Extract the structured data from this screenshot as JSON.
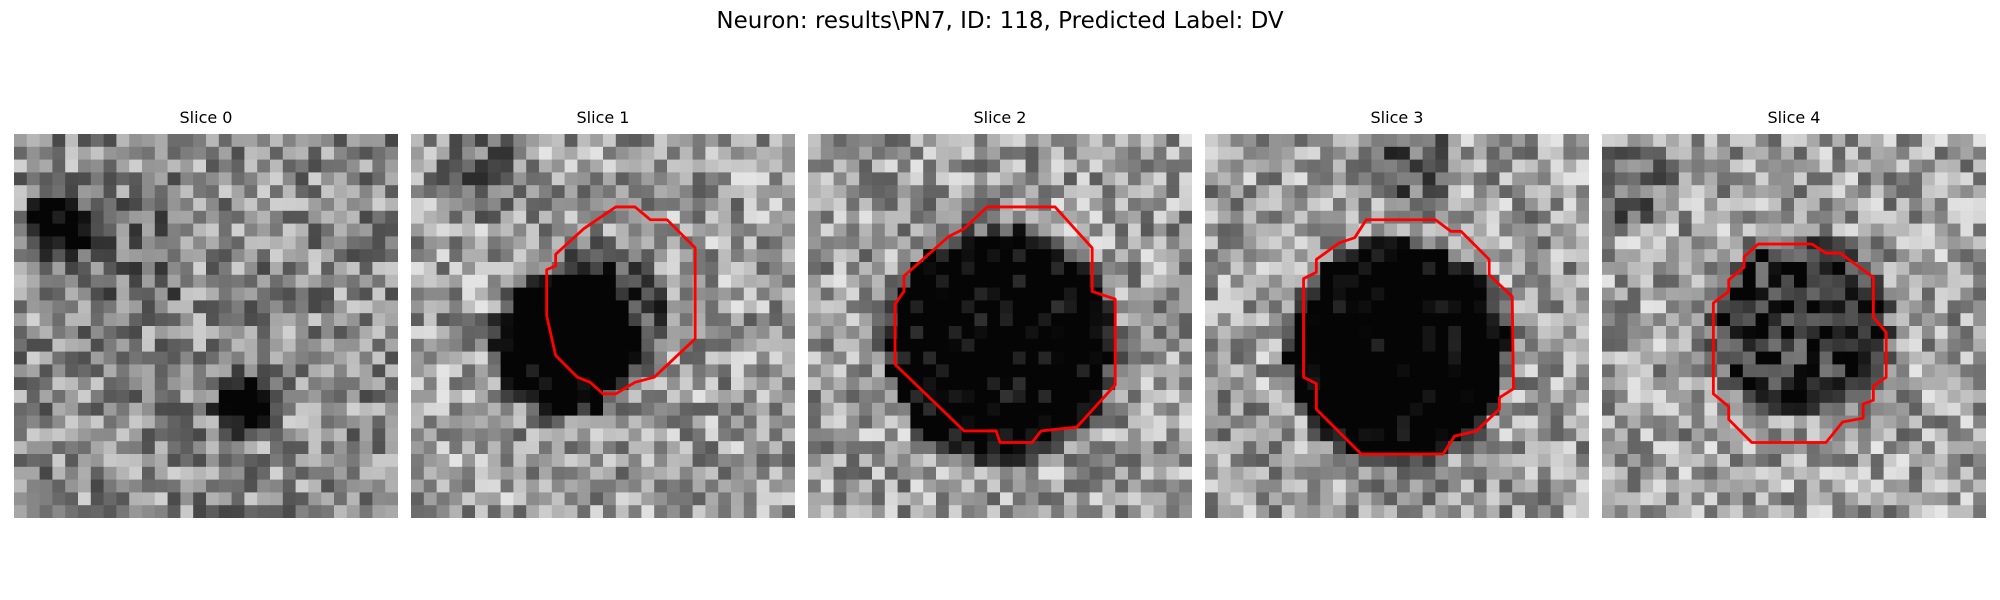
{
  "figure": {
    "title": "Neuron: results\\PN7, ID: 118, Predicted Label: DV"
  },
  "colors": {
    "contour": "#ff0000",
    "background": "#ffffff"
  },
  "slices": [
    {
      "label": "Slice 0",
      "has_contour": false
    },
    {
      "label": "Slice 1",
      "has_contour": true
    },
    {
      "label": "Slice 2",
      "has_contour": true
    },
    {
      "label": "Slice 3",
      "has_contour": true
    },
    {
      "label": "Slice 4",
      "has_contour": true
    }
  ]
}
